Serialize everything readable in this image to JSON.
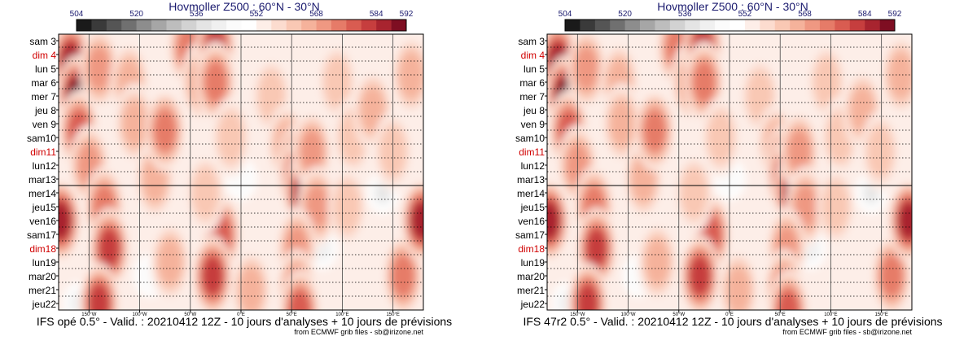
{
  "panels": [
    {
      "title": "Hovmoller Z500 : 60°N - 30°N",
      "footer": "IFS opé 0.5° - Valid. : 20210412 12Z - 10 jours d'analyses + 10 jours de prévisions",
      "credit": "from ECMWF grib files - sb@irizone.net"
    },
    {
      "title": "Hovmoller Z500 : 60°N - 30°N",
      "footer": "IFS 47r2 0.5° - Valid. : 20210412 12Z - 10 jours d'analyses + 10 jours de prévisions",
      "credit": "from ECMWF grib files - sb@irizone.net"
    }
  ],
  "chart_data": {
    "type": "heatmap",
    "title": "Hovmoller Z500 : 60°N - 30°N",
    "colorbar": {
      "ticks": [
        504,
        520,
        536,
        552,
        568,
        584,
        592
      ],
      "range": [
        504,
        592
      ],
      "colors": [
        "#1a1a1a",
        "#3a3a3a",
        "#555555",
        "#707070",
        "#8d8d8d",
        "#a6a6a6",
        "#bdbdbd",
        "#d2d2d2",
        "#e4e4e4",
        "#f0f0f0",
        "#fbfbfb",
        "#ffffff",
        "#fdeee8",
        "#fcdccf",
        "#f9c8b4",
        "#f5b29b",
        "#ef9882",
        "#e67b68",
        "#d95c51",
        "#c63e3e",
        "#a8242f",
        "#7e0e22"
      ]
    },
    "days": [
      "sam 3",
      "dim 4",
      "lun 5",
      "mar 6",
      "mer 7",
      "jeu 8",
      "ven 9",
      "sam10",
      "dim11",
      "lun12",
      "mar13",
      "mer14",
      "jeu15",
      "ven16",
      "sam17",
      "dim18",
      "lun19",
      "mar20",
      "mer21",
      "jeu22"
    ],
    "sundays": [
      "dim 4",
      "dim11",
      "dim18"
    ],
    "sunday_color": "#d00000",
    "analysis_forecast_split": "mar13",
    "longitudes": [
      "150°W",
      "100°W",
      "50°W",
      "0°E",
      "50°E",
      "100°E",
      "150°E"
    ],
    "xlim": [
      -180,
      180
    ],
    "blobs": [
      {
        "lon": -168,
        "day": 1.5,
        "intensity": 9
      },
      {
        "lon": -162,
        "day": 4,
        "intensity": 10
      },
      {
        "lon": -160,
        "day": 6.5,
        "intensity": 7
      },
      {
        "lon": -140,
        "day": 2,
        "intensity": 5
      },
      {
        "lon": -150,
        "day": 9,
        "intensity": 5
      },
      {
        "lon": -135,
        "day": 12,
        "intensity": 6
      },
      {
        "lon": -130,
        "day": 15,
        "intensity": 8
      },
      {
        "lon": -140,
        "day": 19,
        "intensity": 8
      },
      {
        "lon": -110,
        "day": 3,
        "intensity": 4
      },
      {
        "lon": -105,
        "day": 6,
        "intensity": 4
      },
      {
        "lon": -85,
        "day": 10,
        "intensity": 4
      },
      {
        "lon": -75,
        "day": 6.5,
        "intensity": 6
      },
      {
        "lon": -70,
        "day": 16,
        "intensity": 4
      },
      {
        "lon": -52,
        "day": 0.5,
        "intensity": 6
      },
      {
        "lon": -40,
        "day": 3,
        "intensity": 4
      },
      {
        "lon": -25,
        "day": 0.5,
        "intensity": 8
      },
      {
        "lon": -25,
        "day": 3,
        "intensity": 6
      },
      {
        "lon": -20,
        "day": 14,
        "intensity": 7
      },
      {
        "lon": -28,
        "day": 17,
        "intensity": 8
      },
      {
        "lon": -35,
        "day": 11,
        "intensity": 3
      },
      {
        "lon": -10,
        "day": 7,
        "intensity": 3
      },
      {
        "lon": 10,
        "day": 18,
        "intensity": 4
      },
      {
        "lon": 30,
        "day": 4,
        "intensity": 3
      },
      {
        "lon": 45,
        "day": 7.5,
        "intensity": 4
      },
      {
        "lon": 55,
        "day": 9,
        "intensity": 8
      },
      {
        "lon": 57,
        "day": 10,
        "intensity": 10
      },
      {
        "lon": 62,
        "day": 11,
        "intensity": 9
      },
      {
        "lon": 70,
        "day": 8,
        "intensity": 5
      },
      {
        "lon": 75,
        "day": 12,
        "intensity": 5
      },
      {
        "lon": 55,
        "day": 15,
        "intensity": 5
      },
      {
        "lon": 55,
        "day": 18,
        "intensity": 6
      },
      {
        "lon": 58,
        "day": 19.5,
        "intensity": 7
      },
      {
        "lon": 95,
        "day": 3,
        "intensity": 3
      },
      {
        "lon": 110,
        "day": 7,
        "intensity": 3
      },
      {
        "lon": 105,
        "day": 12,
        "intensity": 3
      },
      {
        "lon": 130,
        "day": 5,
        "intensity": 4
      },
      {
        "lon": 150,
        "day": 8,
        "intensity": 3
      },
      {
        "lon": 160,
        "day": 17,
        "intensity": 6
      },
      {
        "lon": 168,
        "day": 2.5,
        "intensity": 4
      },
      {
        "lon": 178,
        "day": 13,
        "intensity": 9
      },
      {
        "lon": -178,
        "day": 13,
        "intensity": 9
      }
    ],
    "cold_spots": [
      {
        "lon": -140,
        "day": 3,
        "intensity": 3
      },
      {
        "lon": -90,
        "day": 17,
        "intensity": 2
      },
      {
        "lon": 0,
        "day": 10,
        "intensity": 2
      },
      {
        "lon": 80,
        "day": 15,
        "intensity": 3
      },
      {
        "lon": 130,
        "day": 6,
        "intensity": 3
      },
      {
        "lon": 140,
        "day": 11,
        "intensity": 4
      },
      {
        "lon": -160,
        "day": 19,
        "intensity": 3
      }
    ]
  }
}
